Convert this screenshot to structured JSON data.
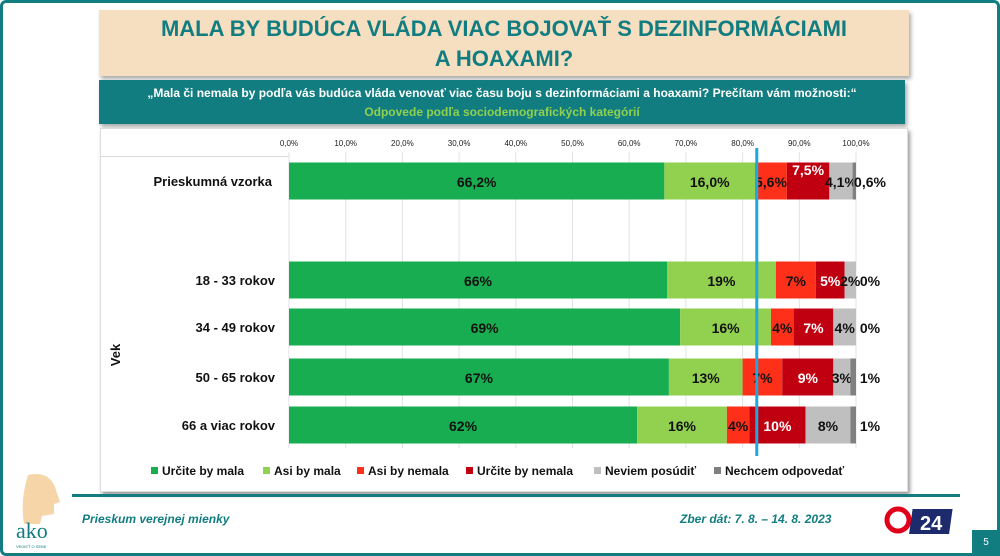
{
  "title_line1": "MALA BY BUDÚCA VLÁDA VIAC BOJOVAŤ S DEZINFORMÁCIAMI",
  "title_line2": "A HOAXAMI?",
  "question": "„Mala či nemala by podľa vás budúca vláda venovať viac času boju s dezinformáciami a hoaxami? Prečítam vám možnosti:“",
  "subtitle": "Odpovede podľa sociodemografických kategórií",
  "footer": {
    "left": "Prieskum verejnej mienky",
    "right": "Zber dát: 7. 8. – 14. 8. 2023",
    "page": "5",
    "logo_text": "ako",
    "logo_sub": "VEDIEŤ O SEBE",
    "tv_logo": "24"
  },
  "colors": {
    "accent": "#127d80",
    "series": [
      "#17ad50",
      "#92d050",
      "#ff3019",
      "#c00010",
      "#bfbfbf",
      "#808080"
    ],
    "reference_line": "#1fa8e0"
  },
  "chart_data": {
    "type": "bar",
    "orientation": "horizontal-stacked-100",
    "group_label": "Vek",
    "xlim": [
      0,
      100
    ],
    "x_ticks": [
      "0,0%",
      "10,0%",
      "20,0%",
      "30,0%",
      "40,0%",
      "50,0%",
      "60,0%",
      "70,0%",
      "80,0%",
      "90,0%",
      "100,0%"
    ],
    "grid": true,
    "legend_position": "bottom",
    "reference_line_x": 82.5,
    "categories": [
      "Prieskumná vzorka",
      "18 - 33 rokov",
      "34 - 49 rokov",
      "50 - 65 rokov",
      "66 a viac rokov"
    ],
    "series": [
      {
        "name": "Určite by mala",
        "values": [
          66.2,
          66,
          69,
          67,
          62
        ],
        "labels": [
          "66,2%",
          "66%",
          "69%",
          "67%",
          "62%"
        ]
      },
      {
        "name": "Asi by mala",
        "values": [
          16.0,
          19,
          16,
          13,
          16
        ],
        "labels": [
          "16,0%",
          "19%",
          "16%",
          "13%",
          "16%"
        ]
      },
      {
        "name": "Asi by nemala",
        "values": [
          5.6,
          7,
          4,
          7,
          4
        ],
        "labels": [
          "5,6%",
          "7%",
          "4%",
          "7%",
          "4%"
        ]
      },
      {
        "name": "Určite by nemala",
        "values": [
          7.5,
          5,
          7,
          9,
          10
        ],
        "labels": [
          "7,5%",
          "5%",
          "7%",
          "9%",
          "10%"
        ]
      },
      {
        "name": "Neviem posúdiť",
        "values": [
          4.1,
          2,
          4,
          3,
          8
        ],
        "labels": [
          "4,1%",
          "2%",
          "4%",
          "3%",
          "8%"
        ]
      },
      {
        "name": "Nechcem odpovedať",
        "values": [
          0.6,
          0,
          0,
          1,
          1
        ],
        "labels": [
          "0,6%",
          "0%",
          "0%",
          "1%",
          "1%"
        ]
      }
    ]
  }
}
